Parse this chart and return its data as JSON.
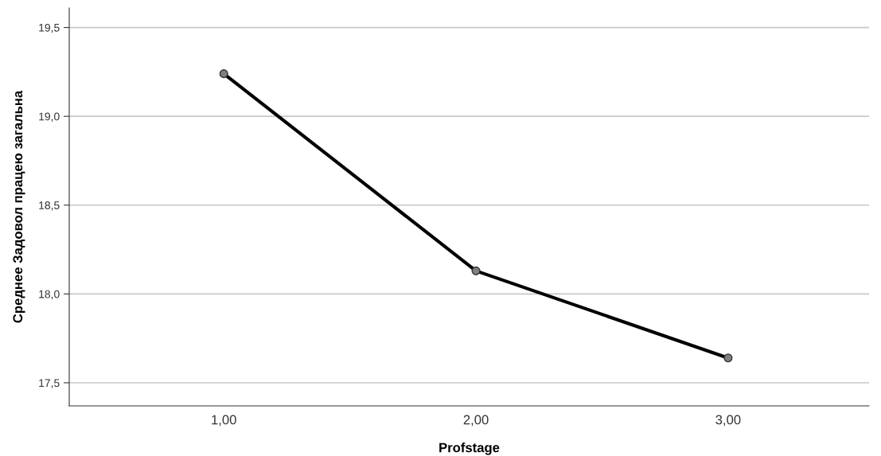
{
  "chart_data": {
    "type": "line",
    "xlabel": "Profstage",
    "ylabel": "Среднее Задовол працею загальна",
    "categories": [
      "1,00",
      "2,00",
      "3,00"
    ],
    "series": [
      {
        "color": "#000000",
        "values": [
          19.24,
          18.13,
          17.64
        ]
      }
    ],
    "ylim": [
      17.37,
      19.61
    ],
    "yticks": [
      {
        "value": 17.5,
        "label": "17,5"
      },
      {
        "value": 18.0,
        "label": "18,0"
      },
      {
        "value": 18.5,
        "label": "18,5"
      },
      {
        "value": 19.0,
        "label": "19,0"
      },
      {
        "value": 19.5,
        "label": "19,5"
      }
    ],
    "grid": "y",
    "marker": "circle",
    "line_style": "solid"
  }
}
